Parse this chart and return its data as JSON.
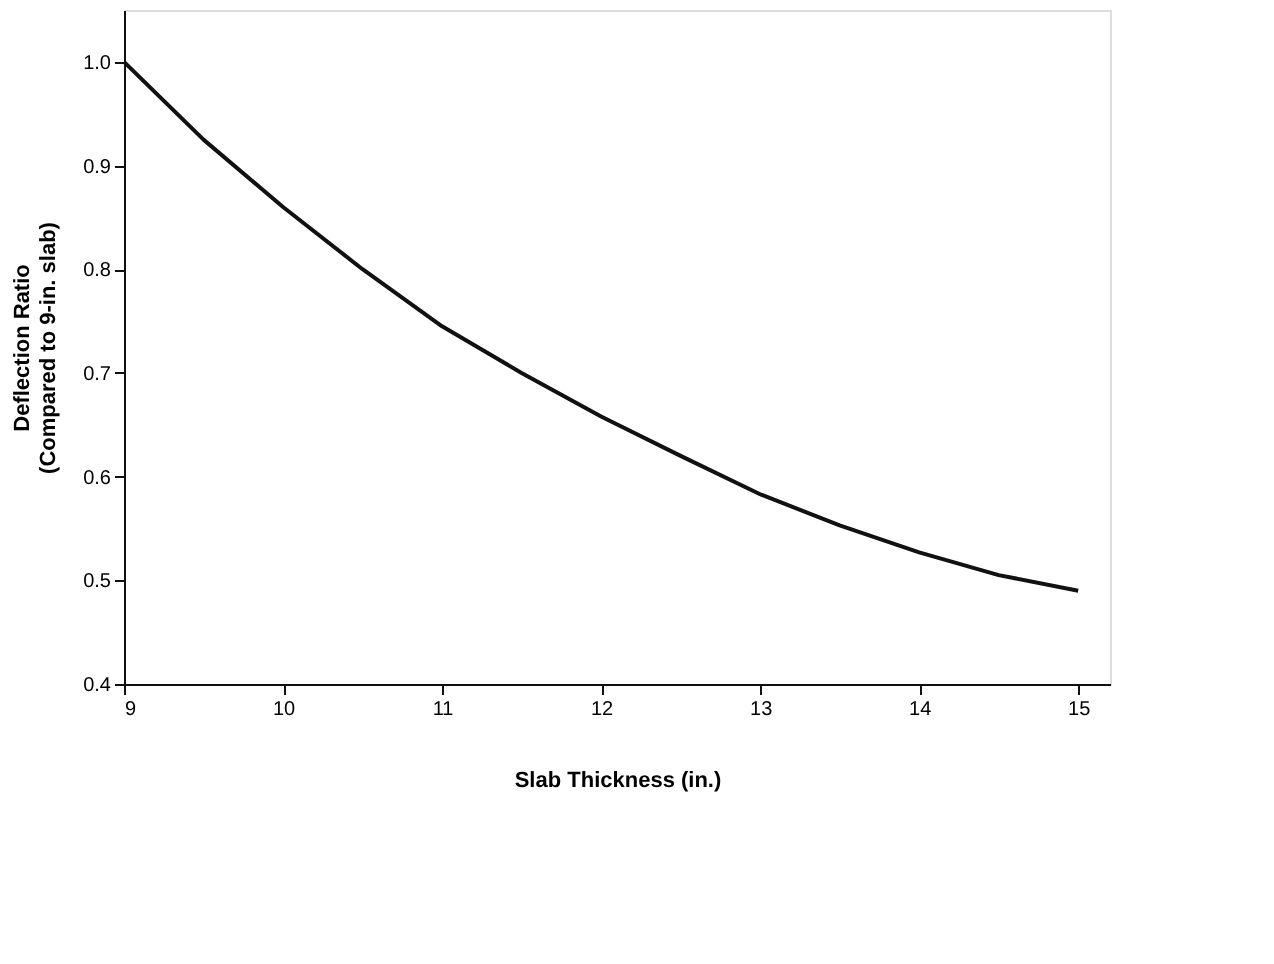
{
  "chart_data": {
    "type": "line",
    "xlabel": "Slab Thickness (in.)",
    "ylabel": "Deflection Ratio\n(Compared to 9-in. slab)",
    "x": [
      9,
      9.5,
      10,
      10.5,
      11,
      11.5,
      12,
      12.5,
      13,
      13.5,
      14,
      14.5,
      15
    ],
    "series": [
      {
        "color": "#111111",
        "values": [
          1.0,
          0.925,
          0.86,
          0.8,
          0.745,
          0.7,
          0.658,
          0.62,
          0.583,
          0.553,
          0.527,
          0.505,
          0.49
        ]
      }
    ],
    "xlim": [
      9,
      15.2
    ],
    "ylim": [
      0.4,
      1.05
    ],
    "xticks": [
      9,
      10,
      11,
      12,
      13,
      14,
      15
    ],
    "yticks": [
      0.4,
      0.5,
      0.6,
      0.7,
      0.8,
      0.9,
      {
        "value": 1,
        "label": "1.0"
      }
    ],
    "marker": "none",
    "line_style": "solid"
  }
}
